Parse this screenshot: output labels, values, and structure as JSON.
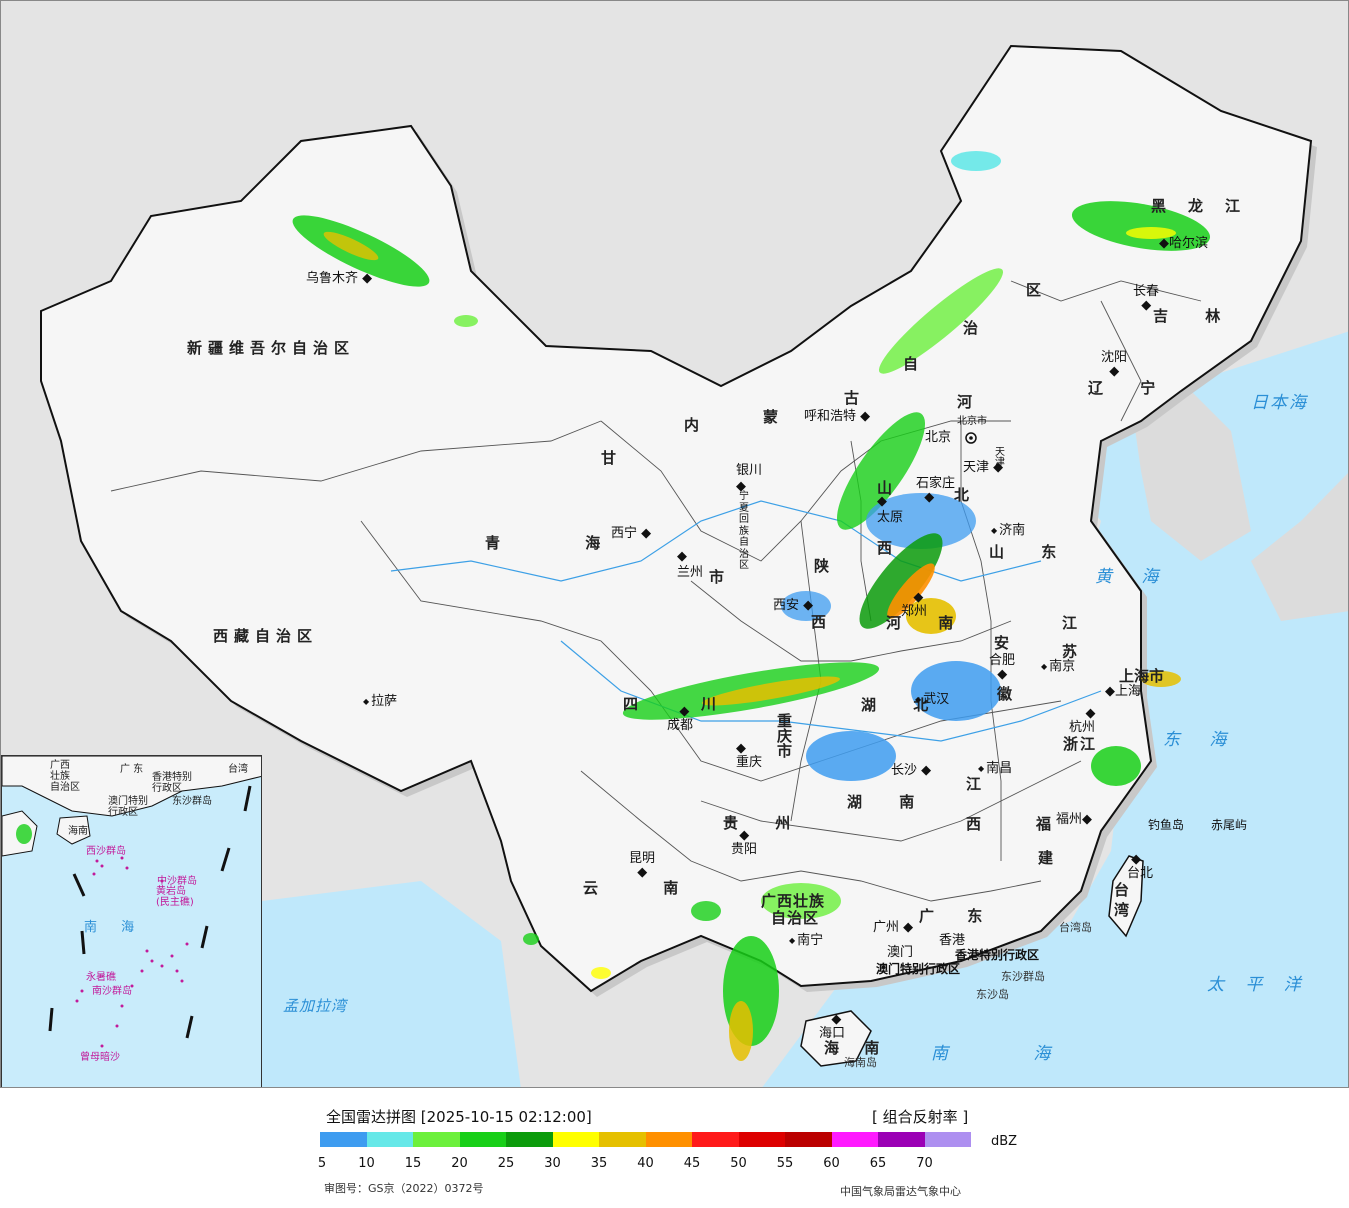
{
  "map": {
    "provinces": [
      {
        "id": "xinjiang",
        "label": "新疆维吾尔自治区"
      },
      {
        "id": "xizang",
        "label": "西藏自治区"
      },
      {
        "id": "qinghai",
        "label": "青 海"
      },
      {
        "id": "gansu",
        "label": "甘"
      },
      {
        "id": "neimenggu-1",
        "label": "内"
      },
      {
        "id": "neimenggu-2",
        "label": "蒙"
      },
      {
        "id": "neimenggu-3",
        "label": "古"
      },
      {
        "id": "neimenggu-4",
        "label": "自"
      },
      {
        "id": "neimenggu-5",
        "label": "治"
      },
      {
        "id": "neimenggu-6",
        "label": "区"
      },
      {
        "id": "heilongjiang",
        "label": "黑龙江"
      },
      {
        "id": "jilin",
        "label": "吉 林"
      },
      {
        "id": "liaoning",
        "label": "辽 宁"
      },
      {
        "id": "hebei-1",
        "label": "河"
      },
      {
        "id": "hebei-2",
        "label": "北"
      },
      {
        "id": "shanxi-1",
        "label": "山"
      },
      {
        "id": "shanxi-2",
        "label": "西"
      },
      {
        "id": "shandong",
        "label": "山 东"
      },
      {
        "id": "shaanxi-1",
        "label": "陕"
      },
      {
        "id": "shaanxi-2",
        "label": "西"
      },
      {
        "id": "henan",
        "label": "河 南"
      },
      {
        "id": "jiangsu",
        "label": "江 苏"
      },
      {
        "id": "anhui-1",
        "label": "安"
      },
      {
        "id": "anhui-2",
        "label": "徽"
      },
      {
        "id": "hubei",
        "label": "湖 北"
      },
      {
        "id": "sichuan-1",
        "label": "四"
      },
      {
        "id": "sichuan-2",
        "label": "川"
      },
      {
        "id": "chongqing",
        "label": "重庆市"
      },
      {
        "id": "zhejiang",
        "label": "浙江"
      },
      {
        "id": "shanghai",
        "label": "上海市"
      },
      {
        "id": "hunan",
        "label": "湖 南"
      },
      {
        "id": "jiangxi-1",
        "label": "江"
      },
      {
        "id": "jiangxi-2",
        "label": "西"
      },
      {
        "id": "fujian-1",
        "label": "福"
      },
      {
        "id": "fujian-2",
        "label": "建"
      },
      {
        "id": "guizhou",
        "label": "贵 州"
      },
      {
        "id": "yunnan",
        "label": "云 南"
      },
      {
        "id": "guangxi-1",
        "label": "广西壮族"
      },
      {
        "id": "guangxi-2",
        "label": "自治区"
      },
      {
        "id": "guangdong",
        "label": "广 东"
      },
      {
        "id": "taiwan-1",
        "label": "台"
      },
      {
        "id": "taiwan-2",
        "label": "湾"
      },
      {
        "id": "hainan",
        "label": "海 南"
      },
      {
        "id": "ningxia",
        "label": "宁夏回族自治区"
      },
      {
        "id": "gansu-shi",
        "label": "市"
      },
      {
        "id": "hk",
        "label": "香港特别行政区"
      },
      {
        "id": "macao",
        "label": "澳门特别行政区"
      },
      {
        "id": "beijing",
        "label": "北京市"
      },
      {
        "id": "tianjin",
        "label": "天津"
      }
    ],
    "cities": [
      {
        "id": "urumqi",
        "label": "乌鲁木齐"
      },
      {
        "id": "lhasa",
        "label": "拉萨"
      },
      {
        "id": "xining",
        "label": "西宁"
      },
      {
        "id": "lanzhou",
        "label": "兰州"
      },
      {
        "id": "yinchuan",
        "label": "银川"
      },
      {
        "id": "hohhot",
        "label": "呼和浩特"
      },
      {
        "id": "beijing-city",
        "label": "北京"
      },
      {
        "id": "tianjin-city",
        "label": "天津"
      },
      {
        "id": "shijiazhuang",
        "label": "石家庄"
      },
      {
        "id": "taiyuan",
        "label": "太原"
      },
      {
        "id": "jinan",
        "label": "济南"
      },
      {
        "id": "zhengzhou",
        "label": "郑州"
      },
      {
        "id": "xian",
        "label": "西安"
      },
      {
        "id": "hefei",
        "label": "合肥"
      },
      {
        "id": "nanjing",
        "label": "南京"
      },
      {
        "id": "shanghai-city",
        "label": "上海"
      },
      {
        "id": "hangzhou",
        "label": "杭州"
      },
      {
        "id": "wuhan",
        "label": "武汉"
      },
      {
        "id": "chengdu",
        "label": "成都"
      },
      {
        "id": "chongqing-city",
        "label": "重庆"
      },
      {
        "id": "changsha",
        "label": "长沙"
      },
      {
        "id": "nanchang",
        "label": "南昌"
      },
      {
        "id": "fuzhou",
        "label": "福州"
      },
      {
        "id": "guiyang",
        "label": "贵阳"
      },
      {
        "id": "kunming",
        "label": "昆明"
      },
      {
        "id": "nanning",
        "label": "南宁"
      },
      {
        "id": "guangzhou",
        "label": "广州"
      },
      {
        "id": "hongkong",
        "label": "香港"
      },
      {
        "id": "macau",
        "label": "澳门"
      },
      {
        "id": "haikou",
        "label": "海口"
      },
      {
        "id": "taipei",
        "label": "台北"
      },
      {
        "id": "harbin",
        "label": "哈尔滨"
      },
      {
        "id": "changchun",
        "label": "长春"
      },
      {
        "id": "shenyang",
        "label": "沈阳"
      }
    ],
    "seas": [
      {
        "id": "japan-sea",
        "label": "日本海"
      },
      {
        "id": "yellow-sea",
        "label": "黄 海"
      },
      {
        "id": "east-sea",
        "label": "东 海"
      },
      {
        "id": "pacific",
        "label": "太 平 洋"
      },
      {
        "id": "south-sea",
        "label": "南 海"
      },
      {
        "id": "bengal",
        "label": "孟加拉湾"
      }
    ],
    "islands": [
      {
        "id": "diaoyu",
        "label": "钓鱼岛"
      },
      {
        "id": "chiwei",
        "label": "赤尾屿"
      },
      {
        "id": "taiwan-island",
        "label": "台湾岛"
      },
      {
        "id": "dongsha-qundao",
        "label": "东沙群岛"
      },
      {
        "id": "dongsha-dao",
        "label": "东沙岛"
      },
      {
        "id": "hainan-dao",
        "label": "海南岛"
      }
    ]
  },
  "inset": {
    "labels": [
      {
        "id": "ins-guangxi",
        "label": "广西\n壮族\n自治区"
      },
      {
        "id": "ins-guangdong",
        "label": "广 东"
      },
      {
        "id": "ins-taiwan",
        "label": "台湾"
      },
      {
        "id": "ins-hk",
        "label": "香港特别\n行政区"
      },
      {
        "id": "ins-macao",
        "label": "澳门特别\n行政区"
      },
      {
        "id": "ins-dongsha",
        "label": "东沙群岛"
      },
      {
        "id": "ins-hainan",
        "label": "海南"
      },
      {
        "id": "ins-xisha",
        "label": "西沙群岛"
      },
      {
        "id": "ins-zhongsha",
        "label": "中沙群岛"
      },
      {
        "id": "ins-huangyan",
        "label": "黄岩岛\n(民主礁)"
      },
      {
        "id": "ins-sea",
        "label": "南 海"
      },
      {
        "id": "ins-nansha",
        "label": "南沙群岛"
      },
      {
        "id": "ins-yongshu",
        "label": "永暑礁"
      },
      {
        "id": "ins-zengmu",
        "label": "曾母暗沙"
      }
    ]
  },
  "legend": {
    "title": "全国雷达拼图 [2025-10-15 02:12:00]",
    "product": "[ 组合反射率 ]",
    "unit": "dBZ",
    "colors": [
      "#3e9cf0",
      "#66e8e8",
      "#6cf03c",
      "#18cf18",
      "#0b9b0b",
      "#ffff00",
      "#e5c000",
      "#ff9000",
      "#ff1a1a",
      "#dd0000",
      "#bb0000",
      "#ff1aff",
      "#9b00b5",
      "#ad8ff0"
    ],
    "ticks": [
      "5",
      "10",
      "15",
      "20",
      "25",
      "30",
      "35",
      "40",
      "45",
      "50",
      "55",
      "60",
      "65",
      "70"
    ],
    "review": "审图号：GS京（2022）0372号",
    "producer": "中国气象局雷达气象中心"
  }
}
